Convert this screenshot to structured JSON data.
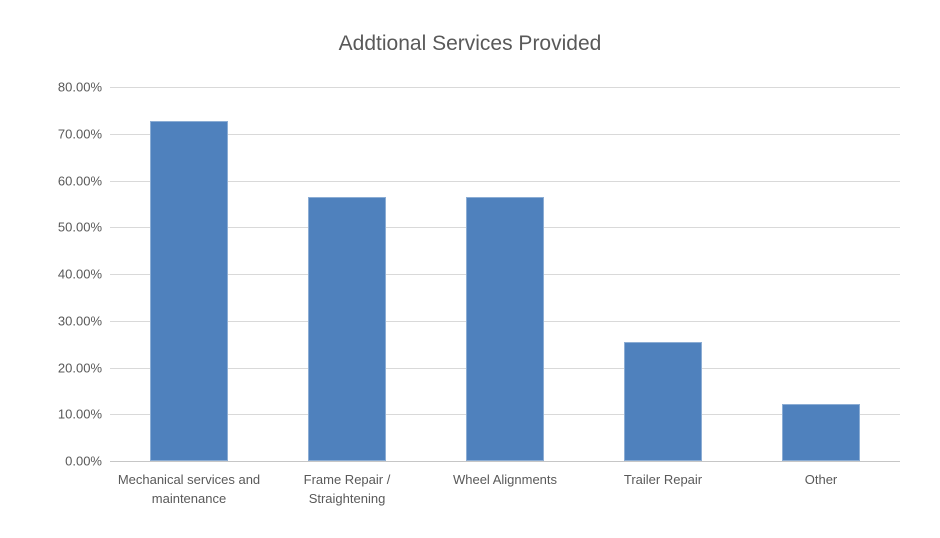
{
  "chart_data": {
    "type": "bar",
    "title": "Addtional Services Provided",
    "categories": [
      "Mechanical services and maintenance",
      "Frame Repair / Straightening",
      "Wheel Alignments",
      "Trailer Repair",
      "Other"
    ],
    "values": [
      72.7,
      56.4,
      56.4,
      25.4,
      12.2
    ],
    "xlabel": "",
    "ylabel": "",
    "ylim": [
      0,
      80
    ],
    "ytick_step": 10,
    "ytick_labels": [
      "0.00%",
      "10.00%",
      "20.00%",
      "30.00%",
      "40.00%",
      "50.00%",
      "60.00%",
      "70.00%",
      "80.00%"
    ],
    "grid": true,
    "legend": false,
    "colors": {
      "bar": "#4f81bd",
      "gridline": "#d9d9d9",
      "axis": "#c6c6c6",
      "text": "#595959",
      "background": "#ffffff"
    }
  }
}
